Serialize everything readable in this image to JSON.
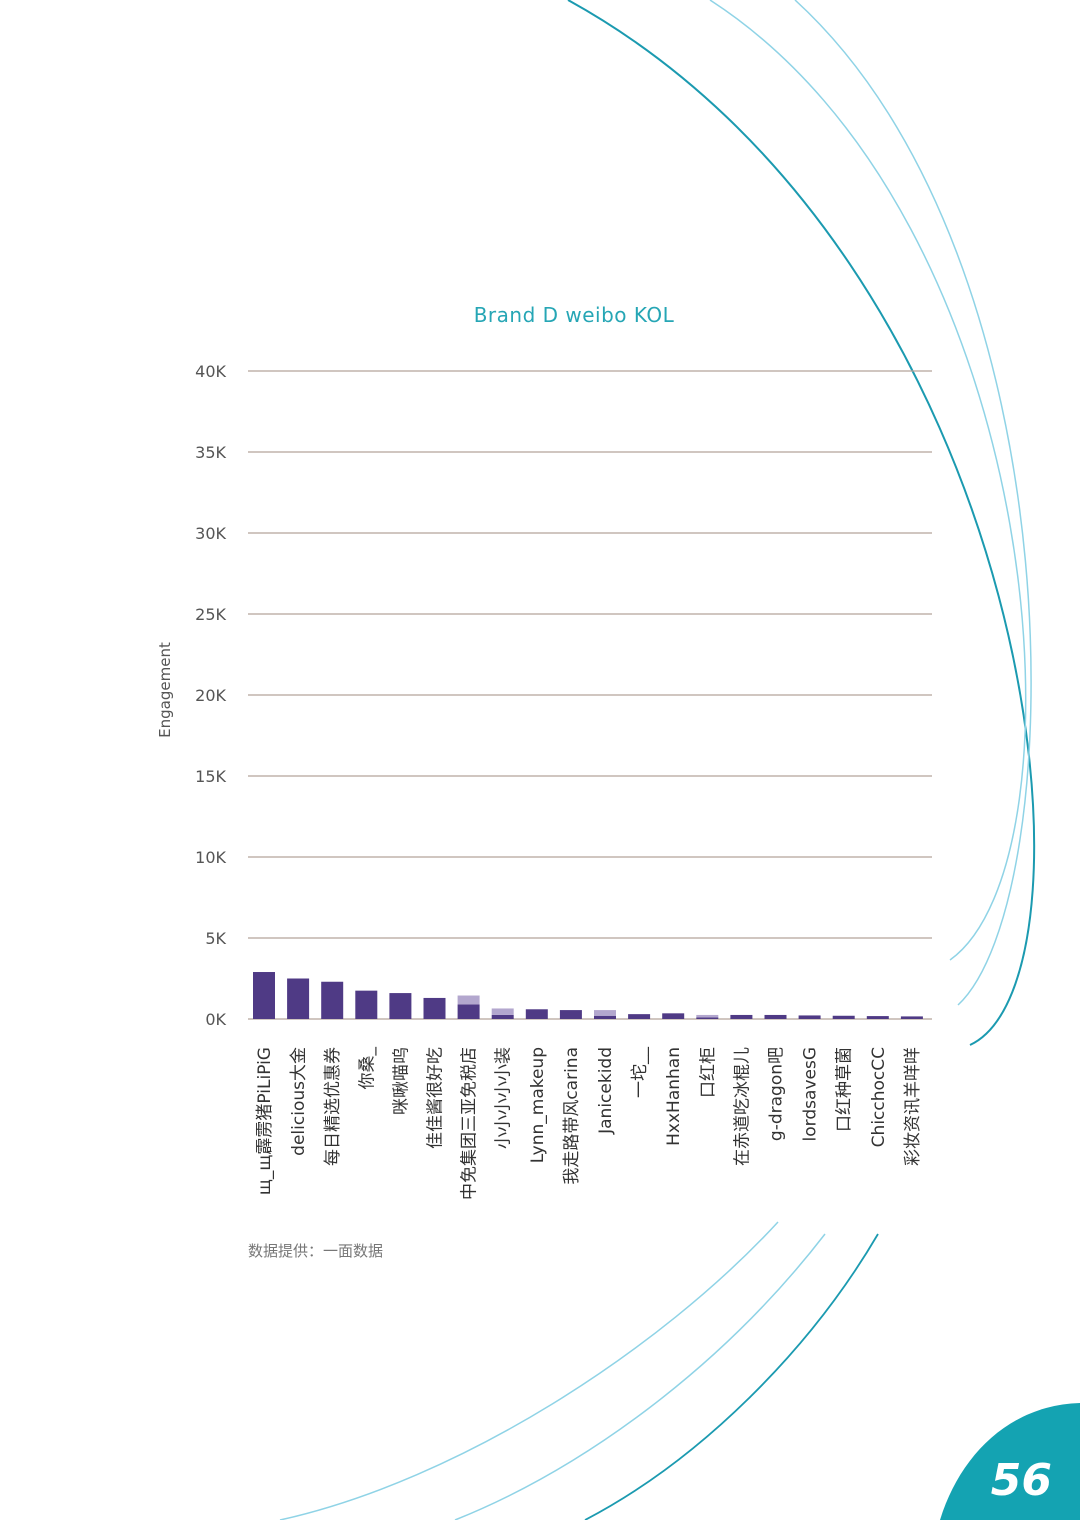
{
  "page": {
    "number": "56",
    "source_note": "数据提供：一面数据",
    "accent_color": "#26a6b5",
    "bar_color": "#4f3a85",
    "bar_light_color": "#b3a7ce"
  },
  "chart_data": {
    "type": "bar",
    "title": "Brand D weibo KOL",
    "ylabel": "Engagement",
    "xlabel": "",
    "ylim": [
      0,
      40000
    ],
    "yticks": [
      {
        "value": 0,
        "label": "0K"
      },
      {
        "value": 5000,
        "label": "5K"
      },
      {
        "value": 10000,
        "label": "10K"
      },
      {
        "value": 15000,
        "label": "15K"
      },
      {
        "value": 20000,
        "label": "20K"
      },
      {
        "value": 25000,
        "label": "25K"
      },
      {
        "value": 30000,
        "label": "30K"
      },
      {
        "value": 35000,
        "label": "35K"
      },
      {
        "value": 40000,
        "label": "40K"
      }
    ],
    "grid": true,
    "categories": [
      "щ_щ霹雳猪PiLiPiG",
      "delicious大金",
      "每日精选优惠券",
      "你桑_",
      "咪啾喵呜",
      "佳佳酱很好吃",
      "中免集团三亚免税店",
      "小小小小小装",
      "Lynn_makeup",
      "我走路带风carina",
      "Janicekidd",
      "一坨__",
      "HxxHanhan",
      "口红柜",
      "在赤道吃冰棍儿",
      "g-dragon吧",
      "lordsavesG",
      "口红种草菌",
      "ChicchocCC",
      "彩妆资讯羊咩咩"
    ],
    "series": [
      {
        "color": "#4f3a85",
        "values": [
          2900,
          2500,
          2300,
          1750,
          1600,
          1300,
          900,
          250,
          600,
          550,
          200,
          300,
          350,
          100,
          250,
          250,
          220,
          200,
          180,
          160
        ]
      },
      {
        "color": "#b3a7ce",
        "values": [
          0,
          0,
          0,
          0,
          0,
          0,
          550,
          400,
          0,
          0,
          350,
          0,
          0,
          150,
          0,
          0,
          0,
          0,
          0,
          0
        ]
      }
    ]
  }
}
